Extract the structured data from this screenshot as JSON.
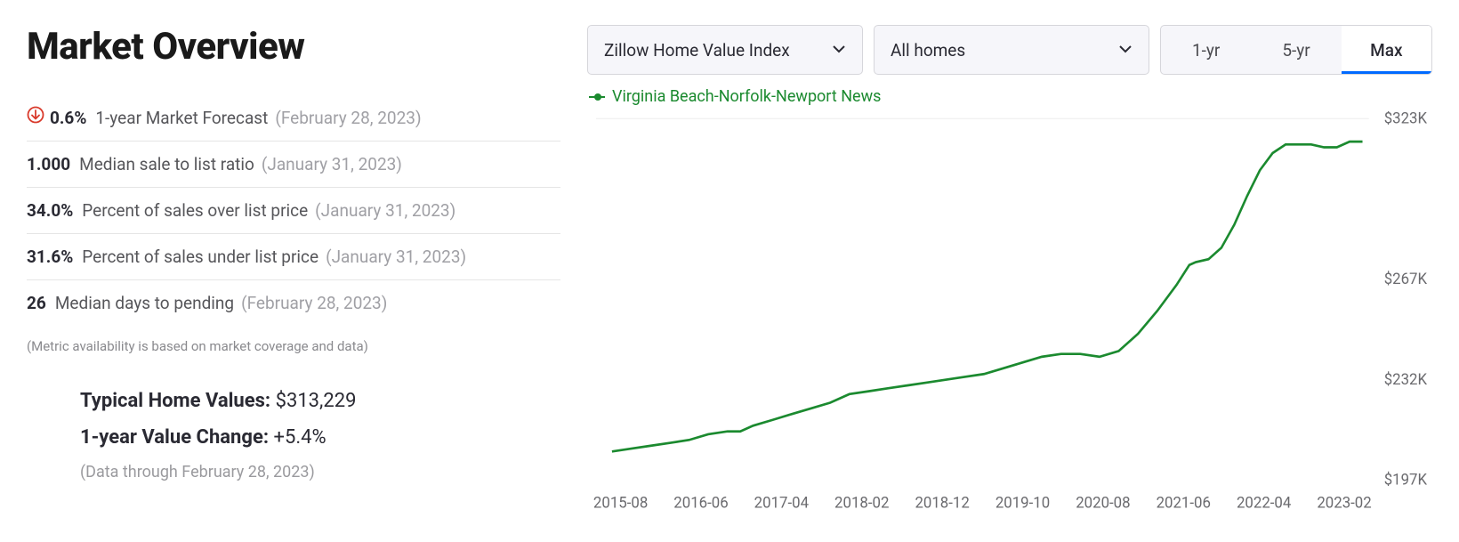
{
  "title": "Market Overview",
  "stats": [
    {
      "icon": "down",
      "value": "0.6%",
      "label": "1-year Market Forecast",
      "date": "(February 28, 2023)"
    },
    {
      "value": "1.000",
      "label": "Median sale to list ratio",
      "date": "(January 31, 2023)"
    },
    {
      "value": "34.0%",
      "label": "Percent of sales over list price",
      "date": "(January 31, 2023)"
    },
    {
      "value": "31.6%",
      "label": "Percent of sales under list price",
      "date": "(January 31, 2023)"
    },
    {
      "value": "26",
      "label": "Median days to pending",
      "date": "(February 28, 2023)"
    }
  ],
  "footnote": "(Metric availability is based on market coverage and data)",
  "summary": {
    "typical_label": "Typical Home Values:",
    "typical_value": "$313,229",
    "change_label": "1-year Value Change:",
    "change_value": "+5.4%",
    "data_through": "(Data through February 28, 2023)"
  },
  "controls": {
    "dropdown1": "Zillow Home Value Index",
    "dropdown2": "All homes",
    "ranges": [
      "1-yr",
      "5-yr",
      "Max"
    ],
    "active_range_index": 2
  },
  "chart": {
    "type": "line",
    "legend_label": "Virginia Beach-Norfolk-Newport News",
    "series_color": "#1b8a2f",
    "legend_color": "#1b8a2f",
    "background_color": "#ffffff",
    "grid_color": "#eeeeee",
    "axis_text_color": "#6a6a6e",
    "line_width": 2.6,
    "y_ticks": [
      "$323K",
      "$267K",
      "$232K",
      "$197K"
    ],
    "y_tick_values": [
      323,
      267,
      232,
      197
    ],
    "ylim": [
      197,
      323
    ],
    "x_labels": [
      "2015-08",
      "2016-06",
      "2017-04",
      "2018-02",
      "2018-12",
      "2019-10",
      "2020-08",
      "2021-06",
      "2022-04",
      "2023-02"
    ],
    "data": [
      [
        0.0,
        207
      ],
      [
        0.06,
        208
      ],
      [
        0.12,
        209
      ],
      [
        0.18,
        210
      ],
      [
        0.24,
        211
      ],
      [
        0.3,
        213
      ],
      [
        0.36,
        214
      ],
      [
        0.4,
        214
      ],
      [
        0.44,
        216
      ],
      [
        0.5,
        218
      ],
      [
        0.56,
        220
      ],
      [
        0.62,
        222
      ],
      [
        0.68,
        224
      ],
      [
        0.74,
        227
      ],
      [
        0.8,
        228
      ],
      [
        0.86,
        229
      ],
      [
        0.92,
        230
      ],
      [
        0.98,
        231
      ],
      [
        1.04,
        232
      ],
      [
        1.1,
        233
      ],
      [
        1.16,
        234
      ],
      [
        1.22,
        236
      ],
      [
        1.28,
        238
      ],
      [
        1.34,
        240
      ],
      [
        1.4,
        241
      ],
      [
        1.46,
        241
      ],
      [
        1.52,
        240
      ],
      [
        1.58,
        242
      ],
      [
        1.64,
        248
      ],
      [
        1.7,
        256
      ],
      [
        1.76,
        265
      ],
      [
        1.8,
        272
      ],
      [
        1.82,
        273
      ],
      [
        1.86,
        274
      ],
      [
        1.9,
        278
      ],
      [
        1.94,
        286
      ],
      [
        1.98,
        296
      ],
      [
        2.02,
        305
      ],
      [
        2.06,
        311
      ],
      [
        2.1,
        314
      ],
      [
        2.14,
        314
      ],
      [
        2.18,
        314
      ],
      [
        2.22,
        313
      ],
      [
        2.26,
        313
      ],
      [
        2.3,
        315
      ],
      [
        2.34,
        315
      ]
    ],
    "x_domain": [
      -0.05,
      2.36
    ]
  },
  "colors": {
    "down_icon": "#d93a2b",
    "tab_active_underline": "#006aff"
  }
}
